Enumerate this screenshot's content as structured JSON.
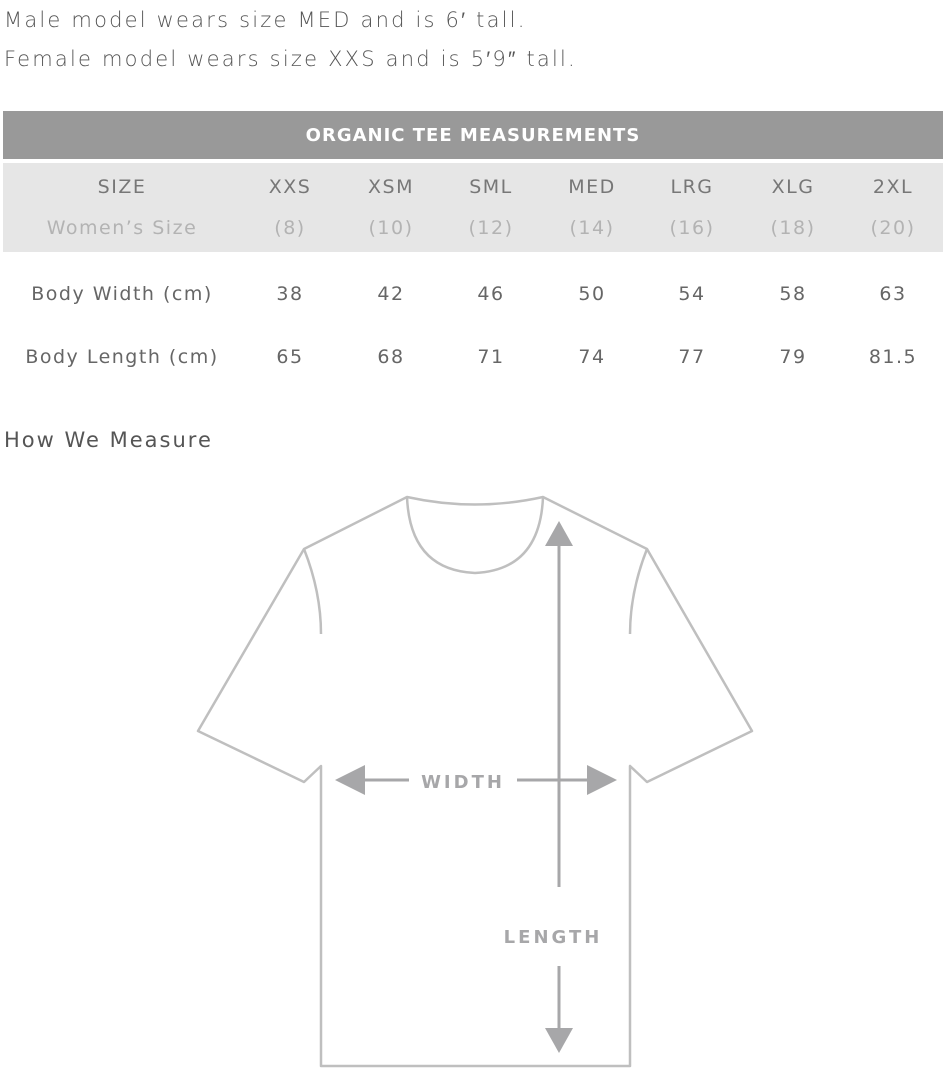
{
  "notes": [
    "Male model wears size MED and is 6′ tall.",
    "Female model wears size XXS and is 5′9″ tall."
  ],
  "table": {
    "title": "ORGANIC TEE MEASUREMENTS",
    "size_row": [
      "SIZE",
      "XXS",
      "XSM",
      "SML",
      "MED",
      "LRG",
      "XLG",
      "2XL"
    ],
    "women_row": [
      "Women’s Size",
      "(8)",
      "(10)",
      "(12)",
      "(14)",
      "(16)",
      "(18)",
      "(20)"
    ],
    "rows": [
      [
        "Body Width (cm)",
        "38",
        "42",
        "46",
        "50",
        "54",
        "58",
        "63"
      ],
      [
        "Body Length (cm)",
        "65",
        "68",
        "71",
        "74",
        "77",
        "79",
        "81.5"
      ]
    ]
  },
  "how_we_measure": "How We Measure",
  "diagram": {
    "width_label": "WIDTH",
    "length_label": "LENGTH",
    "line_color": "#bfbfbf",
    "arrow_color": "#a7a7a9"
  },
  "colors": {
    "header_bg": "#999999",
    "subheader_bg": "#e6e6e6"
  }
}
